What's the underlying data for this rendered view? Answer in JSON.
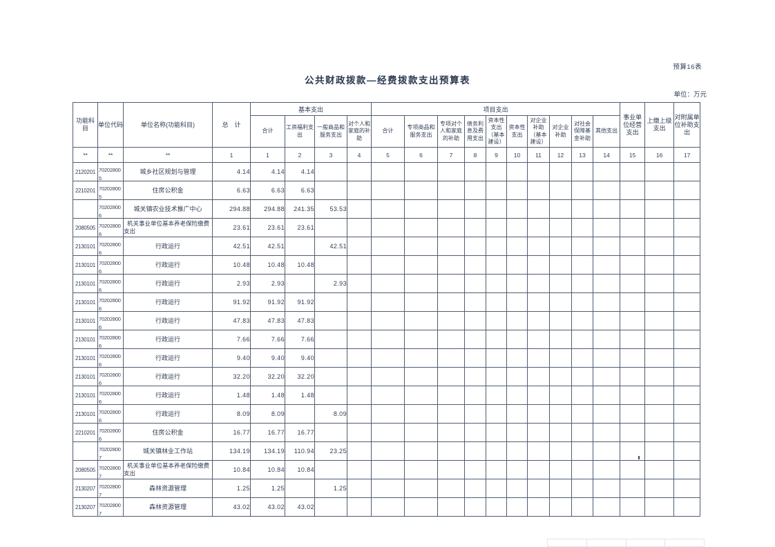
{
  "page": {
    "table_label": "预算16表",
    "title": "公共财政拨款—经费拨款支出预算表",
    "unit_note": "单位：万元"
  },
  "table": {
    "header": {
      "func_subject": "功能科目",
      "unit_code": "单位代码",
      "unit_name": "单位名称(功能科目)",
      "total": "总　计",
      "basic_group": "基本支出",
      "project_group": "项目支出",
      "basic_cols": [
        "合计",
        "工资福利支出",
        "一般商品和服务支出",
        "对个人和家庭的补助"
      ],
      "project_cols": [
        "合计",
        "专项商品和服务支出",
        "专项对个人和家庭的补助",
        "债务利息及费用支出",
        "资本性支出（基本建设）",
        "资本性支出",
        "对企业补助（基本建设）",
        "对企业补助",
        "对社会保障基金补助",
        "其他支出"
      ],
      "tail_cols": [
        "事业单位经营支出",
        "上缴上级支出",
        "对附属单位补助支出"
      ],
      "index_row": [
        "**",
        "**",
        "**",
        "1",
        "1",
        "2",
        "3",
        "4",
        "5",
        "6",
        "7",
        "8",
        "9",
        "10",
        "11",
        "12",
        "13",
        "14",
        "15",
        "16",
        "17"
      ]
    },
    "rows": [
      {
        "func": "2120201",
        "code": "702028005",
        "name": "城乡社区规划与管理",
        "cells": [
          "4.14",
          "4.14",
          "4.14",
          "",
          "",
          "",
          "",
          "",
          "",
          "",
          "",
          "",
          "",
          "",
          "",
          "",
          "",
          ""
        ]
      },
      {
        "func": "2210201",
        "code": "702028005",
        "name": "住房公积金",
        "cells": [
          "6.63",
          "6.63",
          "6.63",
          "",
          "",
          "",
          "",
          "",
          "",
          "",
          "",
          "",
          "",
          "",
          "",
          "",
          "",
          ""
        ]
      },
      {
        "func": "",
        "code": "702028006",
        "name": "城关镇农业技术推广中心",
        "cells": [
          "294.88",
          "294.88",
          "241.35",
          "53.53",
          "",
          "",
          "",
          "",
          "",
          "",
          "",
          "",
          "",
          "",
          "",
          "",
          "",
          ""
        ]
      },
      {
        "func": "2080505",
        "code": "702028006",
        "name": "机关事业单位基本养老保险缴费支出",
        "cells": [
          "23.61",
          "23.61",
          "23.61",
          "",
          "",
          "",
          "",
          "",
          "",
          "",
          "",
          "",
          "",
          "",
          "",
          "",
          "",
          ""
        ]
      },
      {
        "func": "2130101",
        "code": "702028006",
        "name": "行政运行",
        "cells": [
          "42.51",
          "42.51",
          "",
          "42.51",
          "",
          "",
          "",
          "",
          "",
          "",
          "",
          "",
          "",
          "",
          "",
          "",
          "",
          ""
        ]
      },
      {
        "func": "2130101",
        "code": "702028006",
        "name": "行政运行",
        "cells": [
          "10.48",
          "10.48",
          "10.48",
          "",
          "",
          "",
          "",
          "",
          "",
          "",
          "",
          "",
          "",
          "",
          "",
          "",
          "",
          ""
        ]
      },
      {
        "func": "2130101",
        "code": "702028006",
        "name": "行政运行",
        "cells": [
          "2.93",
          "2.93",
          "",
          "2.93",
          "",
          "",
          "",
          "",
          "",
          "",
          "",
          "",
          "",
          "",
          "",
          "",
          "",
          ""
        ]
      },
      {
        "func": "2130101",
        "code": "702028006",
        "name": "行政运行",
        "cells": [
          "91.92",
          "91.92",
          "91.92",
          "",
          "",
          "",
          "",
          "",
          "",
          "",
          "",
          "",
          "",
          "",
          "",
          "",
          "",
          ""
        ]
      },
      {
        "func": "2130101",
        "code": "702028006",
        "name": "行政运行",
        "cells": [
          "47.83",
          "47.83",
          "47.83",
          "",
          "",
          "",
          "",
          "",
          "",
          "",
          "",
          "",
          "",
          "",
          "",
          "",
          "",
          ""
        ]
      },
      {
        "func": "2130101",
        "code": "702028006",
        "name": "行政运行",
        "cells": [
          "7.66",
          "7.66",
          "7.66",
          "",
          "",
          "",
          "",
          "",
          "",
          "",
          "",
          "",
          "",
          "",
          "",
          "",
          "",
          ""
        ]
      },
      {
        "func": "2130101",
        "code": "702028006",
        "name": "行政运行",
        "cells": [
          "9.40",
          "9.40",
          "9.40",
          "",
          "",
          "",
          "",
          "",
          "",
          "",
          "",
          "",
          "",
          "",
          "",
          "",
          "",
          ""
        ]
      },
      {
        "func": "2130101",
        "code": "702028006",
        "name": "行政运行",
        "cells": [
          "32.20",
          "32.20",
          "32.20",
          "",
          "",
          "",
          "",
          "",
          "",
          "",
          "",
          "",
          "",
          "",
          "",
          "",
          "",
          ""
        ]
      },
      {
        "func": "2130101",
        "code": "702028006",
        "name": "行政运行",
        "cells": [
          "1.48",
          "1.48",
          "1.48",
          "",
          "",
          "",
          "",
          "",
          "",
          "",
          "",
          "",
          "",
          "",
          "",
          "",
          "",
          ""
        ]
      },
      {
        "func": "2130101",
        "code": "702028006",
        "name": "行政运行",
        "cells": [
          "8.09",
          "8.09",
          "",
          "8.09",
          "",
          "",
          "",
          "",
          "",
          "",
          "",
          "",
          "",
          "",
          "",
          "",
          "",
          ""
        ]
      },
      {
        "func": "2210201",
        "code": "702028006",
        "name": "住房公积金",
        "cells": [
          "16.77",
          "16.77",
          "16.77",
          "",
          "",
          "",
          "",
          "",
          "",
          "",
          "",
          "",
          "",
          "",
          "",
          "",
          "",
          ""
        ]
      },
      {
        "func": "",
        "code": "702028007",
        "name": "城关镇林业工作站",
        "cells": [
          "134.19",
          "134.19",
          "110.94",
          "23.25",
          "",
          "",
          "",
          "",
          "",
          "",
          "",
          "",
          "",
          "",
          "",
          "",
          "",
          ""
        ]
      },
      {
        "func": "2080505",
        "code": "702028007",
        "name": "机关事业单位基本养老保险缴费支出",
        "cells": [
          "10.84",
          "10.84",
          "10.84",
          "",
          "",
          "",
          "",
          "",
          "",
          "",
          "",
          "",
          "",
          "",
          "",
          "",
          "",
          ""
        ]
      },
      {
        "func": "2130207",
        "code": "702028007",
        "name": "森林资源管理",
        "cells": [
          "1.25",
          "1.25",
          "",
          "1.25",
          "",
          "",
          "",
          "",
          "",
          "",
          "",
          "",
          "",
          "",
          "",
          "",
          "",
          ""
        ]
      },
      {
        "func": "2130207",
        "code": "702028007",
        "name": "森林资源管理",
        "cells": [
          "43.02",
          "43.02",
          "43.02",
          "",
          "",
          "",
          "",
          "",
          "",
          "",
          "",
          "",
          "",
          "",
          "",
          "",
          "",
          ""
        ]
      }
    ]
  }
}
